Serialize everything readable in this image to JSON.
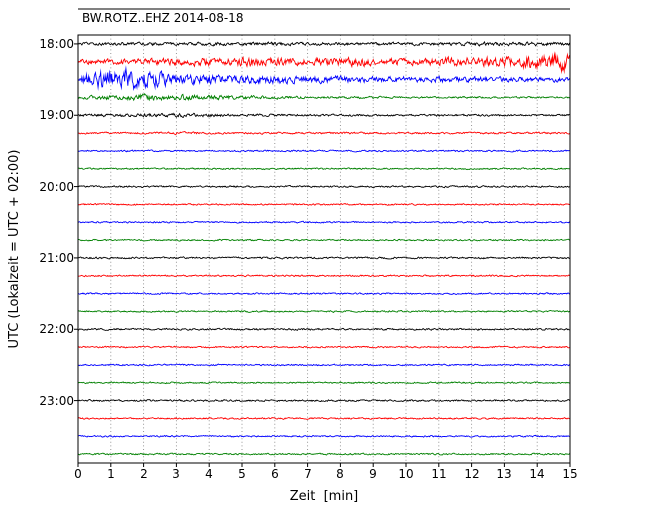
{
  "chart_data": {
    "type": "line",
    "subtype": "seismogram-dayplot",
    "title": "BW.ROTZ..EHZ 2014-08-18",
    "xlabel": "Zeit  [min]",
    "ylabel": "UTC (Lokalzeit = UTC + 02:00)",
    "x_ticks": [
      "0",
      "1",
      "2",
      "3",
      "4",
      "5",
      "6",
      "7",
      "8",
      "9",
      "10",
      "11",
      "12",
      "13",
      "14",
      "15"
    ],
    "y_ticks": [
      "18:00",
      "19:00",
      "20:00",
      "21:00",
      "22:00",
      "23:00"
    ],
    "x_range_minutes": [
      0,
      15
    ],
    "minutes_per_row": 15,
    "grid": "vertical-dotted",
    "grid_color": "#8a8a8a",
    "colors_cycle": [
      "#000000",
      "#ff0000",
      "#0000ff",
      "#008000"
    ],
    "rows": [
      {
        "start_utc": "18:00",
        "color": "#000000",
        "amp_env": [
          1.5,
          1.5,
          1.6,
          1.5,
          1.7,
          1.6,
          1.8,
          1.6,
          1.6,
          1.5,
          1.6,
          1.7,
          1.9,
          1.8,
          1.9,
          1.7
        ]
      },
      {
        "start_utc": "18:15",
        "color": "#ff0000",
        "amp_env": [
          2.5,
          2.5,
          3.0,
          3.5,
          4.0,
          4.5,
          4.0,
          3.5,
          4.5,
          4.0,
          3.5,
          4.0,
          4.5,
          5.0,
          7.0,
          9.0
        ]
      },
      {
        "start_utc": "18:30",
        "color": "#0000ff",
        "amp_env": [
          4.0,
          12.0,
          9.0,
          6.0,
          5.0,
          4.5,
          4.0,
          3.5,
          3.5,
          3.0,
          3.0,
          3.0,
          2.8,
          2.6,
          2.6,
          2.4
        ]
      },
      {
        "start_utc": "18:45",
        "color": "#008000",
        "amp_env": [
          1.5,
          2.5,
          3.5,
          3.0,
          2.5,
          2.0,
          1.6,
          1.3,
          1.2,
          1.1,
          1.0,
          1.0,
          1.0,
          0.9,
          0.9,
          0.9
        ]
      },
      {
        "start_utc": "19:00",
        "color": "#000000",
        "amp_env": [
          1.3,
          1.4,
          1.8,
          2.0,
          1.7,
          1.4,
          1.2,
          1.1,
          1.1,
          1.0,
          1.0,
          1.0,
          1.0,
          1.0,
          1.0,
          1.0
        ]
      },
      {
        "start_utc": "19:15",
        "color": "#ff0000",
        "amp_env": [
          0.9,
          0.9,
          1.0,
          1.3,
          1.1,
          0.9,
          0.9,
          0.9,
          1.0,
          0.9,
          0.9,
          0.9,
          0.9,
          0.9,
          1.0,
          0.9
        ]
      },
      {
        "start_utc": "19:30",
        "color": "#0000ff",
        "amp_env": [
          0.8,
          0.8
        ]
      },
      {
        "start_utc": "19:45",
        "color": "#008000",
        "amp_env": [
          0.8,
          0.8
        ]
      },
      {
        "start_utc": "20:00",
        "color": "#000000",
        "amp_env": [
          0.9,
          0.9
        ]
      },
      {
        "start_utc": "20:15",
        "color": "#ff0000",
        "amp_env": [
          0.8,
          0.8
        ]
      },
      {
        "start_utc": "20:30",
        "color": "#0000ff",
        "amp_env": [
          0.8,
          0.8
        ]
      },
      {
        "start_utc": "20:45",
        "color": "#008000",
        "amp_env": [
          0.8,
          0.8
        ]
      },
      {
        "start_utc": "21:00",
        "color": "#000000",
        "amp_env": [
          0.9,
          0.9
        ]
      },
      {
        "start_utc": "21:15",
        "color": "#ff0000",
        "amp_env": [
          0.8,
          0.8
        ]
      },
      {
        "start_utc": "21:30",
        "color": "#0000ff",
        "amp_env": [
          0.8,
          0.8
        ]
      },
      {
        "start_utc": "21:45",
        "color": "#008000",
        "amp_env": [
          0.8,
          0.8
        ]
      },
      {
        "start_utc": "22:00",
        "color": "#000000",
        "amp_env": [
          0.9,
          0.9
        ]
      },
      {
        "start_utc": "22:15",
        "color": "#ff0000",
        "amp_env": [
          0.8,
          0.8
        ]
      },
      {
        "start_utc": "22:30",
        "color": "#0000ff",
        "amp_env": [
          0.8,
          0.8
        ]
      },
      {
        "start_utc": "22:45",
        "color": "#008000",
        "amp_env": [
          0.8,
          0.8
        ]
      },
      {
        "start_utc": "23:00",
        "color": "#000000",
        "amp_env": [
          0.9,
          0.9
        ]
      },
      {
        "start_utc": "23:15",
        "color": "#ff0000",
        "amp_env": [
          0.8,
          0.8
        ]
      },
      {
        "start_utc": "23:30",
        "color": "#0000ff",
        "amp_env": [
          0.8,
          0.8
        ]
      },
      {
        "start_utc": "23:45",
        "color": "#008000",
        "amp_env": [
          0.8,
          0.8
        ]
      }
    ]
  }
}
